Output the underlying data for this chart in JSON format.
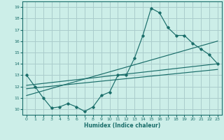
{
  "xlabel": "Humidex (Indice chaleur)",
  "bg_color": "#cceee8",
  "grid_color": "#aacccc",
  "line_color": "#1a6e6a",
  "xlim": [
    -0.5,
    23.5
  ],
  "ylim": [
    9.5,
    19.5
  ],
  "yticks": [
    10,
    11,
    12,
    13,
    14,
    15,
    16,
    17,
    18,
    19
  ],
  "xticks": [
    0,
    1,
    2,
    3,
    4,
    5,
    6,
    7,
    8,
    9,
    10,
    11,
    12,
    13,
    14,
    15,
    16,
    17,
    18,
    19,
    20,
    21,
    22,
    23
  ],
  "curve_x": [
    0,
    1,
    2,
    3,
    4,
    5,
    6,
    7,
    8,
    9,
    10,
    11,
    12,
    13,
    14,
    15,
    16,
    17,
    18,
    19,
    20,
    21,
    22,
    23
  ],
  "curve_y": [
    13.0,
    12.0,
    11.0,
    10.1,
    10.2,
    10.5,
    10.2,
    9.8,
    10.2,
    11.2,
    11.5,
    13.0,
    13.0,
    14.5,
    16.5,
    18.9,
    18.5,
    17.2,
    16.5,
    16.5,
    15.8,
    15.3,
    14.8,
    14.0
  ],
  "line1_x": [
    0,
    23
  ],
  "line1_y": [
    12.1,
    14.0
  ],
  "line2_x": [
    0,
    23
  ],
  "line2_y": [
    11.2,
    16.0
  ],
  "line3_x": [
    0,
    23
  ],
  "line3_y": [
    11.8,
    13.5
  ]
}
